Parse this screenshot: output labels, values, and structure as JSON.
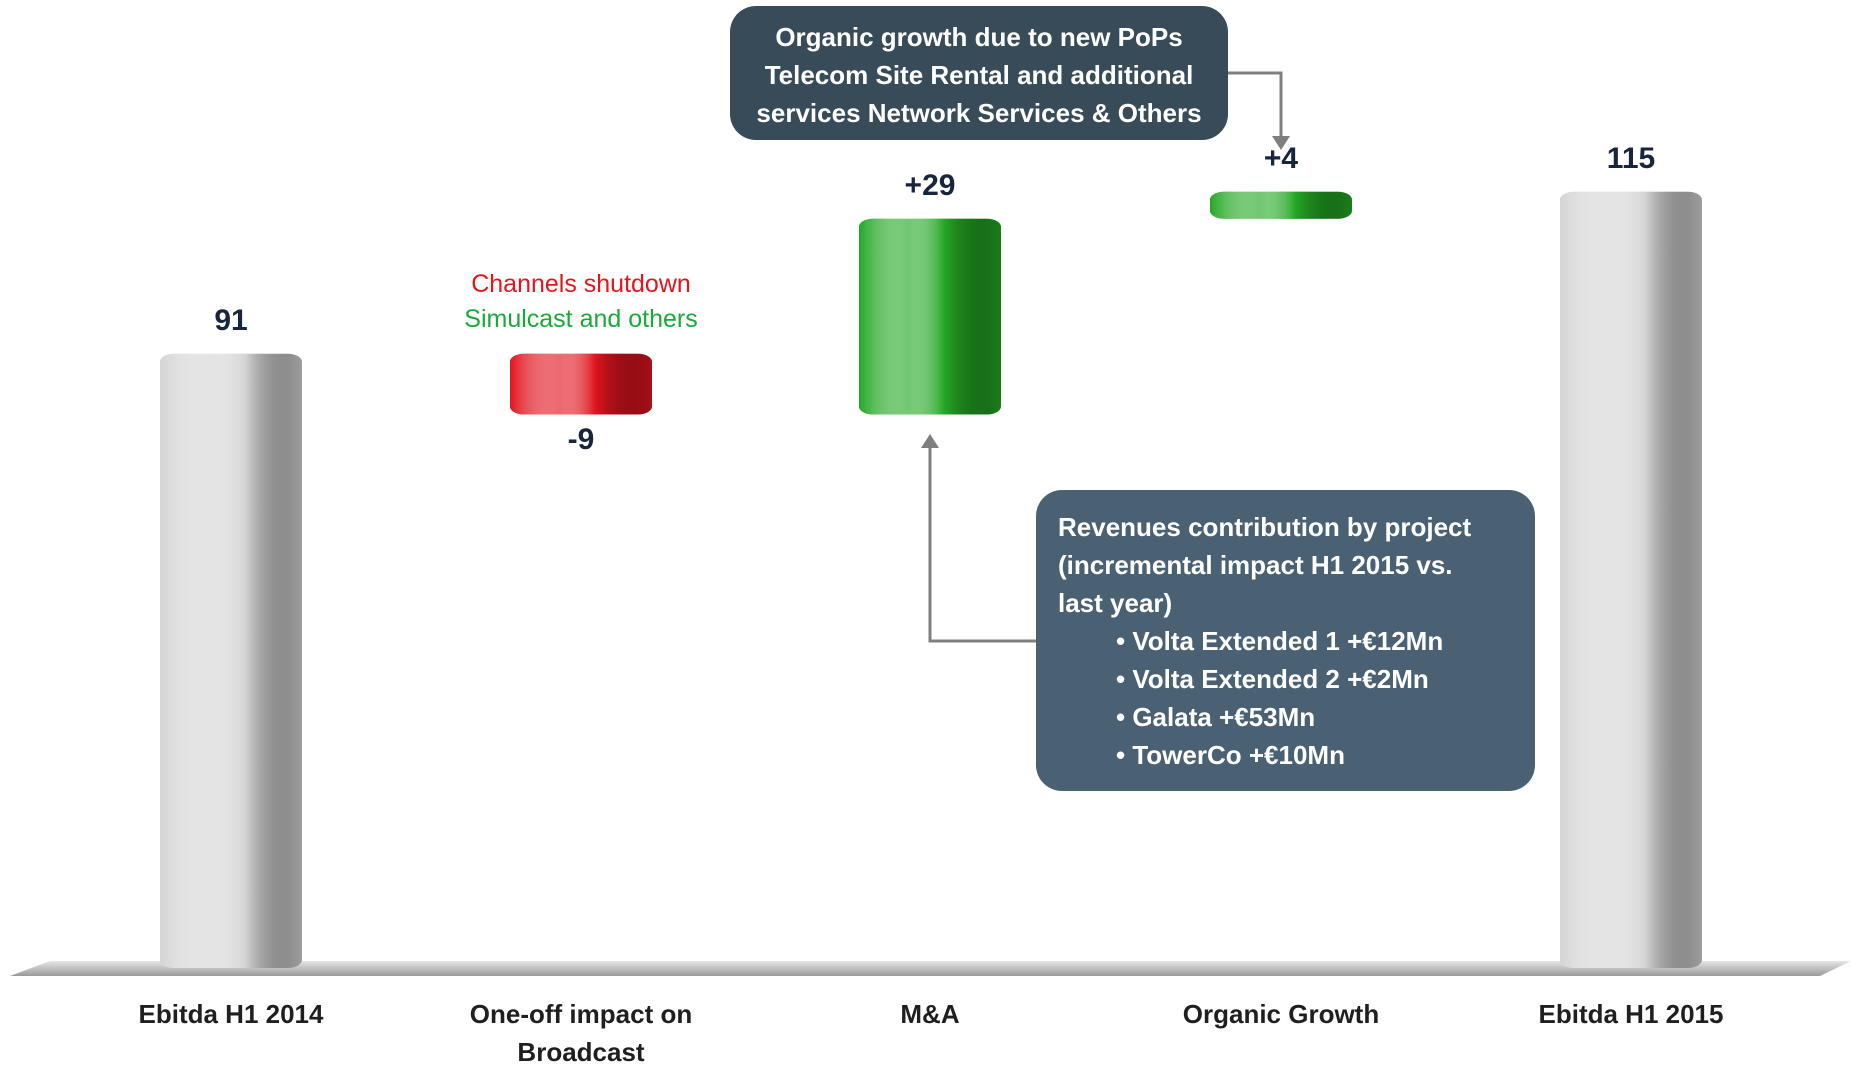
{
  "chart_data": {
    "type": "waterfall",
    "categories": [
      "Ebitda H1 2014",
      "One-off impact on Broadcast",
      "M&A",
      "Organic Growth",
      "Ebitda H1 2015"
    ],
    "values": [
      91,
      -9,
      29,
      4,
      115
    ],
    "value_labels": [
      "91",
      "-9",
      "+29",
      "+4",
      "115"
    ],
    "measure": [
      "total",
      "relative",
      "relative",
      "relative",
      "total"
    ],
    "colors": [
      "#d4d4d4",
      "#e0141e",
      "#24a824",
      "#24a824",
      "#d4d4d4"
    ],
    "annotations": [
      {
        "lines": [
          {
            "text": "Channels shutdown",
            "color": "#e8141c"
          },
          {
            "text": "Simulcast and others",
            "color": "#1aaa3a"
          }
        ]
      }
    ],
    "callouts": [
      {
        "lines": [
          "Organic growth due to new PoPs",
          "Telecom Site Rental and additional",
          "services Network Services & Others"
        ]
      },
      {
        "lines": [
          "Revenues contribution by project",
          "(incremental impact H1 2015 vs.",
          "last year)"
        ],
        "bullets": [
          "Volta Extended 1 +€12Mn",
          "Volta Extended 2 +€2Mn",
          "Galata +€53Mn",
          "TowerCo +€10Mn"
        ]
      }
    ]
  }
}
